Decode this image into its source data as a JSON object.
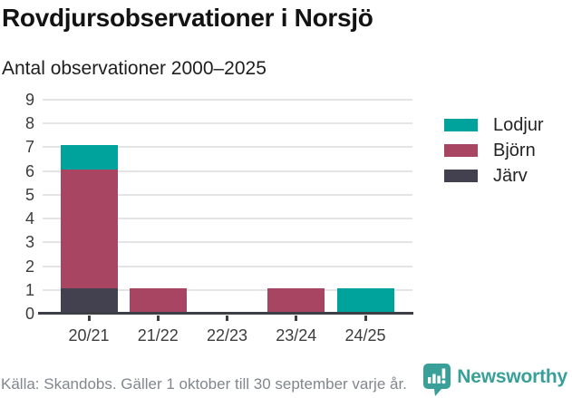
{
  "chart_data": {
    "type": "bar",
    "stacked": true,
    "title": "Rovdjursobservationer i Norsjö",
    "subtitle": "Antal observationer 2000–2025",
    "categories": [
      "20/21",
      "21/22",
      "22/23",
      "23/24",
      "24/25"
    ],
    "series": [
      {
        "name": "Lodjur",
        "color": "#00a39b",
        "values": [
          1,
          0,
          0,
          0,
          1
        ]
      },
      {
        "name": "Björn",
        "color": "#a84563",
        "values": [
          5,
          1,
          0,
          1,
          0
        ]
      },
      {
        "name": "Järv",
        "color": "#434050",
        "values": [
          1,
          0,
          0,
          0,
          0
        ]
      }
    ],
    "stack_totals": [
      7,
      1,
      0,
      1,
      1
    ],
    "ylim": [
      0,
      9
    ],
    "yticks": [
      0,
      1,
      2,
      3,
      4,
      5,
      6,
      7,
      8,
      9
    ],
    "xlabel": "",
    "ylabel": "",
    "grid": "horizontal",
    "legend_position": "right"
  },
  "colors": {
    "lodjur_teal": "#00a39b",
    "bjorn_maroon": "#a84563",
    "jarv_dark": "#434050",
    "gridline": "#e4e4e4",
    "axis": "#3e3f45",
    "brand_teal": "#38a099"
  },
  "footer": {
    "source": "Källa: Skandobs. Gäller 1 oktober till 30 september varje år.",
    "brand": "Newsworthy"
  }
}
